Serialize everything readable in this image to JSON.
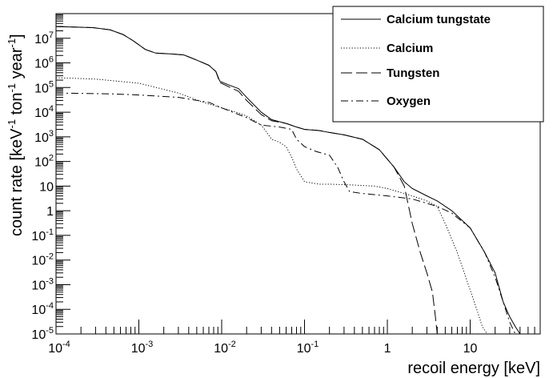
{
  "chart_data": {
    "type": "line",
    "title": "",
    "xlabel": "recoil energy [keV]",
    "ylabel": {
      "base": "count rate [keV",
      "exp1": "-1",
      "mid": " ton",
      "exp2": "-1",
      "tail": " year",
      "exp3": "-1",
      "end": "]"
    },
    "x_scale": "log",
    "y_scale": "log",
    "xlim": [
      0.0001,
      70
    ],
    "ylim": [
      1e-05,
      100000000
    ],
    "grid": false,
    "legend_position": "top-right",
    "x_ticks": [
      {
        "value": 0.0001,
        "base": "10",
        "exp": "-4"
      },
      {
        "value": 0.001,
        "base": "10",
        "exp": "-3"
      },
      {
        "value": 0.01,
        "base": "10",
        "exp": "-2"
      },
      {
        "value": 0.1,
        "base": "10",
        "exp": "-1"
      },
      {
        "value": 1,
        "base": "1",
        "exp": ""
      },
      {
        "value": 10,
        "base": "10",
        "exp": ""
      }
    ],
    "y_ticks": [
      {
        "value": 1e-05,
        "base": "10",
        "exp": "-5"
      },
      {
        "value": 0.0001,
        "base": "10",
        "exp": "-4"
      },
      {
        "value": 0.001,
        "base": "10",
        "exp": "-3"
      },
      {
        "value": 0.01,
        "base": "10",
        "exp": "-2"
      },
      {
        "value": 0.1,
        "base": "10",
        "exp": "-1"
      },
      {
        "value": 1,
        "base": "1",
        "exp": ""
      },
      {
        "value": 10,
        "base": "10",
        "exp": ""
      },
      {
        "value": 100,
        "base": "10",
        "exp": "2"
      },
      {
        "value": 1000,
        "base": "10",
        "exp": "3"
      },
      {
        "value": 10000,
        "base": "10",
        "exp": "4"
      },
      {
        "value": 100000,
        "base": "10",
        "exp": "5"
      },
      {
        "value": 1000000,
        "base": "10",
        "exp": "6"
      },
      {
        "value": 10000000,
        "base": "10",
        "exp": "7"
      }
    ],
    "series": [
      {
        "name": "Calcium tungstate",
        "style": "solid",
        "points": [
          [
            0.0001,
            30000000
          ],
          [
            0.00028,
            27000000
          ],
          [
            0.00045,
            22000000
          ],
          [
            0.00065,
            14000000
          ],
          [
            0.00085,
            8000000
          ],
          [
            0.0012,
            3500000
          ],
          [
            0.0016,
            2500000
          ],
          [
            0.0025,
            2300000
          ],
          [
            0.0035,
            2100000
          ],
          [
            0.005,
            1300000
          ],
          [
            0.007,
            800000
          ],
          [
            0.0085,
            450000
          ],
          [
            0.0095,
            180000
          ],
          [
            0.012,
            130000
          ],
          [
            0.016,
            90000
          ],
          [
            0.02,
            40000
          ],
          [
            0.03,
            10000
          ],
          [
            0.04,
            5000
          ],
          [
            0.06,
            3500
          ],
          [
            0.08,
            2500
          ],
          [
            0.1,
            2000
          ],
          [
            0.15,
            1800
          ],
          [
            0.2,
            1500
          ],
          [
            0.3,
            1200
          ],
          [
            0.5,
            800
          ],
          [
            0.8,
            300
          ],
          [
            1.2,
            60
          ],
          [
            1.6,
            15
          ],
          [
            2,
            8
          ],
          [
            3,
            4
          ],
          [
            4,
            2.5
          ],
          [
            6,
            1
          ],
          [
            10,
            0.2
          ],
          [
            15,
            0.02
          ],
          [
            20,
            0.003
          ],
          [
            25,
            0.0002
          ],
          [
            30,
            5e-05
          ],
          [
            35,
            2e-05
          ],
          [
            40,
            1e-05
          ]
        ]
      },
      {
        "name": "Calcium",
        "style": "dotted",
        "points": [
          [
            0.0001,
            250000
          ],
          [
            0.0003,
            220000
          ],
          [
            0.001,
            150000
          ],
          [
            0.003,
            60000
          ],
          [
            0.006,
            25000
          ],
          [
            0.01,
            15000
          ],
          [
            0.015,
            10000
          ],
          [
            0.02,
            7000
          ],
          [
            0.03,
            3000
          ],
          [
            0.035,
            1500
          ],
          [
            0.04,
            800
          ],
          [
            0.05,
            600
          ],
          [
            0.06,
            400
          ],
          [
            0.07,
            150
          ],
          [
            0.08,
            50
          ],
          [
            0.1,
            15
          ],
          [
            0.15,
            12
          ],
          [
            0.2,
            12
          ],
          [
            0.4,
            11
          ],
          [
            0.7,
            10
          ],
          [
            1,
            8
          ],
          [
            2,
            4
          ],
          [
            3,
            2.5
          ],
          [
            4,
            1.5
          ],
          [
            5,
            0.3
          ],
          [
            7,
            0.02
          ],
          [
            10,
            0.0006
          ],
          [
            12,
            0.0001
          ],
          [
            14,
            2e-05
          ],
          [
            16,
            1e-05
          ]
        ]
      },
      {
        "name": "Tungsten",
        "style": "dashed",
        "points": [
          [
            0.0001,
            30000000
          ],
          [
            0.00028,
            27000000
          ],
          [
            0.00045,
            22000000
          ],
          [
            0.00065,
            14000000
          ],
          [
            0.00085,
            8000000
          ],
          [
            0.0012,
            3500000
          ],
          [
            0.0016,
            2500000
          ],
          [
            0.0025,
            2300000
          ],
          [
            0.0035,
            2100000
          ],
          [
            0.005,
            1300000
          ],
          [
            0.007,
            800000
          ],
          [
            0.0085,
            450000
          ],
          [
            0.0095,
            160000
          ],
          [
            0.012,
            110000
          ],
          [
            0.016,
            70000
          ],
          [
            0.02,
            30000
          ],
          [
            0.03,
            8000
          ],
          [
            0.04,
            4500
          ],
          [
            0.06,
            3500
          ],
          [
            0.08,
            2500
          ],
          [
            0.1,
            2000
          ],
          [
            0.15,
            1800
          ],
          [
            0.2,
            1500
          ],
          [
            0.3,
            1200
          ],
          [
            0.5,
            800
          ],
          [
            0.8,
            300
          ],
          [
            1.2,
            60
          ],
          [
            1.6,
            10
          ],
          [
            2,
            0.3
          ],
          [
            2.5,
            0.02
          ],
          [
            3,
            0.003
          ],
          [
            3.5,
            0.0005
          ],
          [
            3.8,
            5e-05
          ],
          [
            4,
            1e-05
          ]
        ]
      },
      {
        "name": "Oxygen",
        "style": "dashdot",
        "points": [
          [
            0.0001,
            60000
          ],
          [
            0.0005,
            55000
          ],
          [
            0.001,
            50000
          ],
          [
            0.003,
            40000
          ],
          [
            0.007,
            25000
          ],
          [
            0.01,
            15000
          ],
          [
            0.02,
            6000
          ],
          [
            0.03,
            3000
          ],
          [
            0.05,
            2500
          ],
          [
            0.07,
            2000
          ],
          [
            0.08,
            800
          ],
          [
            0.1,
            400
          ],
          [
            0.14,
            250
          ],
          [
            0.2,
            180
          ],
          [
            0.25,
            60
          ],
          [
            0.3,
            15
          ],
          [
            0.35,
            6
          ],
          [
            0.5,
            5
          ],
          [
            1,
            4
          ],
          [
            2,
            3
          ],
          [
            3,
            2
          ],
          [
            4,
            1.5
          ],
          [
            6,
            0.8
          ],
          [
            10,
            0.2
          ],
          [
            15,
            0.02
          ],
          [
            20,
            0.002
          ],
          [
            25,
            0.0002
          ],
          [
            30,
            3e-05
          ],
          [
            35,
            1e-05
          ]
        ]
      }
    ]
  }
}
